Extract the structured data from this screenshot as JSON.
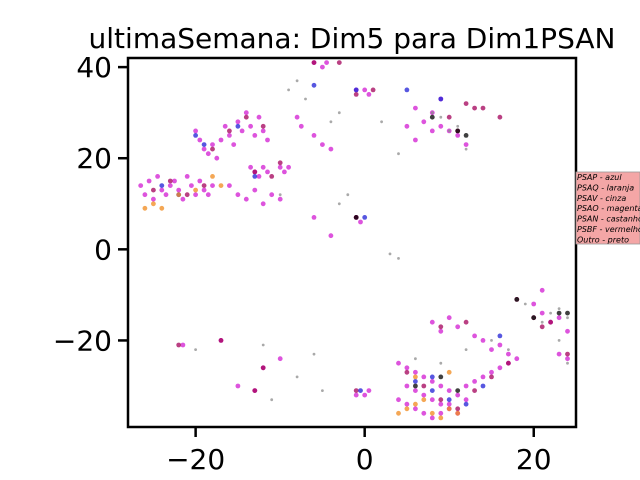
{
  "chart_data": {
    "type": "scatter",
    "title": "ultimaSemana: Dim5 para Dim1PSAN",
    "xlabel": "",
    "ylabel": "",
    "xlim": [
      -28,
      25
    ],
    "ylim": [
      -39,
      42
    ],
    "xticks": [
      -20,
      0,
      20
    ],
    "yticks": [
      -20,
      0,
      20,
      40
    ],
    "xtick_labels": [
      "−20",
      "0",
      "20"
    ],
    "ytick_labels": [
      "−20",
      "0",
      "20",
      "40"
    ],
    "legend_placement": "right",
    "legend_bg": "#f4a6a6",
    "legend": [
      {
        "label": "PSAP - azul",
        "color": "#1f1fd6"
      },
      {
        "label": "PSAQ - laranja",
        "color": "#f08a1c"
      },
      {
        "label": "PSAV - cinza",
        "color": "#8c8c8c"
      },
      {
        "label": "PSAO - magenta",
        "color": "#d21bd2"
      },
      {
        "label": "PSAN - castanho",
        "color": "#8b4513"
      },
      {
        "label": "PSBF - vermelho",
        "color": "#a3005a"
      },
      {
        "label": "Outro - preto",
        "color": "#000000"
      }
    ],
    "series": [
      {
        "color": "#d21bd2",
        "points": [
          [
            -26.5,
            14
          ],
          [
            -26,
            12
          ],
          [
            -25.5,
            15
          ],
          [
            -25,
            11
          ],
          [
            -24.5,
            16
          ],
          [
            -24,
            13
          ],
          [
            -23.5,
            12
          ],
          [
            -23,
            14
          ],
          [
            -22.5,
            15
          ],
          [
            -22,
            13
          ],
          [
            -21.5,
            11
          ],
          [
            -21,
            16
          ],
          [
            -20.5,
            14
          ],
          [
            -20,
            12
          ],
          [
            -19.5,
            15
          ],
          [
            -19,
            13
          ],
          [
            -18.5,
            12
          ],
          [
            -18,
            14
          ],
          [
            -20,
            26
          ],
          [
            -19.5,
            24
          ],
          [
            -19,
            22
          ],
          [
            -18.5,
            21
          ],
          [
            -18,
            23
          ],
          [
            -17.5,
            20
          ],
          [
            -17,
            24
          ],
          [
            -16.5,
            27
          ],
          [
            -16,
            25
          ],
          [
            -15.5,
            23
          ],
          [
            -15,
            28
          ],
          [
            -14.5,
            26
          ],
          [
            -14,
            30
          ],
          [
            -13.5,
            27
          ],
          [
            -13,
            25
          ],
          [
            -12.5,
            29
          ],
          [
            -12,
            26
          ],
          [
            -11.5,
            24
          ],
          [
            -13.5,
            18
          ],
          [
            -13,
            17
          ],
          [
            -12.5,
            16
          ],
          [
            -12,
            18
          ],
          [
            -11.5,
            17
          ],
          [
            -10,
            18
          ],
          [
            -9.5,
            17
          ],
          [
            -9,
            18
          ],
          [
            -16,
            14
          ],
          [
            -15,
            12
          ],
          [
            -14,
            11
          ],
          [
            -13,
            13
          ],
          [
            -12,
            10
          ],
          [
            -11,
            12
          ],
          [
            -10,
            11
          ],
          [
            -6,
            41
          ],
          [
            -5,
            40
          ],
          [
            -4.5,
            41
          ],
          [
            -1,
            35
          ],
          [
            0,
            35
          ],
          [
            0.5,
            34
          ],
          [
            -8,
            29
          ],
          [
            -7.5,
            27
          ],
          [
            -6,
            25
          ],
          [
            -5,
            23
          ],
          [
            -4,
            22
          ],
          [
            6,
            31
          ],
          [
            7,
            28
          ],
          [
            8,
            26
          ],
          [
            9,
            27
          ],
          [
            10,
            26
          ],
          [
            11,
            25
          ],
          [
            12,
            23
          ],
          [
            5,
            27
          ],
          [
            6,
            24
          ],
          [
            8,
            30
          ],
          [
            9,
            33
          ],
          [
            -6,
            7
          ],
          [
            -1,
            7
          ],
          [
            -0.5,
            6
          ],
          [
            -4,
            3
          ],
          [
            4,
            -25
          ],
          [
            5,
            -26
          ],
          [
            6,
            -27
          ],
          [
            7,
            -28
          ],
          [
            8,
            -29
          ],
          [
            9,
            -30
          ],
          [
            10,
            -31
          ],
          [
            11,
            -32
          ],
          [
            12,
            -33
          ],
          [
            5,
            -30
          ],
          [
            6,
            -31
          ],
          [
            7,
            -32
          ],
          [
            8,
            -33
          ],
          [
            9,
            -34
          ],
          [
            10,
            -35
          ],
          [
            11,
            -36
          ],
          [
            12,
            -30
          ],
          [
            13,
            -29
          ],
          [
            14,
            -28
          ],
          [
            15,
            -27
          ],
          [
            16,
            -26
          ],
          [
            17,
            -25
          ],
          [
            4,
            -33
          ],
          [
            5,
            -34
          ],
          [
            6,
            -35
          ],
          [
            7,
            -36
          ],
          [
            8,
            -37
          ],
          [
            9,
            -36
          ],
          [
            10,
            -34
          ],
          [
            8,
            -16
          ],
          [
            9,
            -18
          ],
          [
            10,
            -15
          ],
          [
            11,
            -17
          ],
          [
            13,
            -19
          ],
          [
            14,
            -20
          ],
          [
            15,
            -22
          ],
          [
            16,
            -21
          ],
          [
            17,
            -23
          ],
          [
            18,
            -24
          ],
          [
            20,
            -12
          ],
          [
            21,
            -14
          ],
          [
            22,
            -16
          ],
          [
            23,
            -15
          ],
          [
            24,
            -18
          ],
          [
            21,
            -9
          ],
          [
            23,
            -23
          ],
          [
            24,
            -24
          ],
          [
            -1,
            -32
          ],
          [
            0,
            -32
          ],
          [
            0.5,
            -31
          ],
          [
            -13,
            -31
          ],
          [
            -15,
            -30
          ],
          [
            -12,
            -26
          ],
          [
            -10,
            -24
          ],
          [
            -17,
            -20
          ],
          [
            -21.5,
            -21
          ]
        ]
      },
      {
        "color": "#a3005a",
        "points": [
          [
            -25,
            13
          ],
          [
            -23,
            15
          ],
          [
            -21,
            12
          ],
          [
            -19,
            14
          ],
          [
            -18,
            22
          ],
          [
            -16,
            26
          ],
          [
            -14,
            29
          ],
          [
            -12,
            27
          ],
          [
            -13,
            17
          ],
          [
            -11,
            16
          ],
          [
            -10,
            19
          ],
          [
            -6,
            41
          ],
          [
            -3,
            41
          ],
          [
            -1,
            34
          ],
          [
            1,
            35
          ],
          [
            10,
            29
          ],
          [
            11,
            26
          ],
          [
            12,
            32
          ],
          [
            13,
            31
          ],
          [
            14,
            31
          ],
          [
            16,
            29
          ],
          [
            -1,
            7
          ],
          [
            5,
            -27
          ],
          [
            7,
            -30
          ],
          [
            9,
            -33
          ],
          [
            11,
            -35
          ],
          [
            13,
            -31
          ],
          [
            15,
            -28
          ],
          [
            17,
            -25
          ],
          [
            9,
            -17
          ],
          [
            12,
            -16
          ],
          [
            18,
            -11
          ],
          [
            20,
            -15
          ],
          [
            21,
            -17
          ],
          [
            22,
            -16
          ],
          [
            -1,
            -31
          ],
          [
            -13,
            -31
          ],
          [
            -12,
            -26
          ],
          [
            -17,
            -20
          ],
          [
            -22,
            -21
          ],
          [
            24,
            -23
          ]
        ]
      },
      {
        "color": "#1f1fd6",
        "points": [
          [
            -24,
            14
          ],
          [
            -22,
            12
          ],
          [
            -20,
            25
          ],
          [
            -19,
            23
          ],
          [
            -15,
            27
          ],
          [
            -13,
            16
          ],
          [
            -6,
            36
          ],
          [
            -1,
            35
          ],
          [
            0,
            7
          ],
          [
            5,
            35
          ],
          [
            9,
            33
          ],
          [
            6,
            -29
          ],
          [
            8,
            -31
          ],
          [
            10,
            -33
          ],
          [
            12,
            -34
          ],
          [
            14,
            -30
          ],
          [
            16,
            -19
          ],
          [
            8,
            -28
          ],
          [
            -0.5,
            -31
          ]
        ]
      },
      {
        "color": "#f08a1c",
        "points": [
          [
            -26,
            9
          ],
          [
            -25,
            10
          ],
          [
            -24,
            9
          ],
          [
            -22,
            12
          ],
          [
            -20,
            13
          ],
          [
            -18,
            16
          ],
          [
            -17,
            14
          ],
          [
            4,
            -36
          ],
          [
            5,
            -35
          ],
          [
            6,
            -34
          ],
          [
            7,
            -33
          ],
          [
            8,
            -36
          ],
          [
            9,
            -37
          ],
          [
            10,
            -35
          ],
          [
            11,
            -36
          ],
          [
            6,
            -28
          ],
          [
            10,
            -27
          ]
        ]
      },
      {
        "color": "#8c8c8c",
        "points": [
          [
            -9,
            35
          ],
          [
            -8,
            37
          ],
          [
            -7,
            33
          ],
          [
            -3,
            30
          ],
          [
            -4,
            28
          ],
          [
            2,
            28
          ],
          [
            4,
            21
          ],
          [
            -10,
            12
          ],
          [
            -2,
            12
          ],
          [
            -3,
            10
          ],
          [
            8,
            30
          ],
          [
            9,
            29
          ],
          [
            10,
            26
          ],
          [
            11,
            27
          ],
          [
            12,
            22
          ],
          [
            3,
            -1
          ],
          [
            4,
            -2
          ],
          [
            18,
            -11
          ],
          [
            19,
            -12
          ],
          [
            20,
            -15
          ],
          [
            21,
            -16
          ],
          [
            22,
            -14
          ],
          [
            23,
            -13
          ],
          [
            24,
            -15
          ],
          [
            23,
            -20
          ],
          [
            24,
            -25
          ],
          [
            6,
            -24
          ],
          [
            9,
            -25
          ],
          [
            12,
            -22
          ],
          [
            15,
            -20
          ],
          [
            17,
            -22
          ],
          [
            -6,
            -23
          ],
          [
            -8,
            -28
          ],
          [
            -5,
            -31
          ],
          [
            -11,
            -33
          ],
          [
            -20,
            -22
          ],
          [
            -12,
            -21
          ]
        ]
      },
      {
        "color": "#000000",
        "points": [
          [
            8,
            29
          ],
          [
            11,
            26
          ],
          [
            12,
            25
          ],
          [
            18,
            -11
          ],
          [
            20,
            -15
          ],
          [
            23,
            -14
          ],
          [
            24,
            -14
          ],
          [
            6,
            -30
          ],
          [
            9,
            -28
          ],
          [
            11,
            -31
          ],
          [
            -1,
            7
          ]
        ]
      }
    ]
  }
}
